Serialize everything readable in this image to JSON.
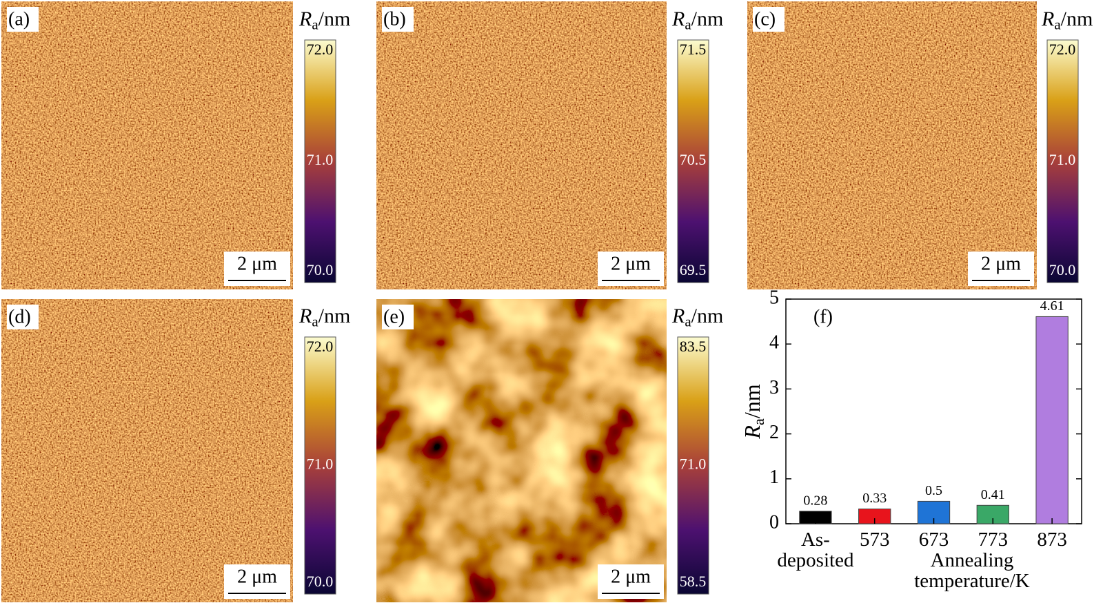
{
  "panels": [
    {
      "label": "(a)",
      "quantity": {
        "symbol": "R",
        "subscript": "a",
        "unit": "/nm"
      },
      "colorbar_ticks": [
        {
          "value": 72,
          "label": "72.0"
        },
        {
          "value": 71,
          "label": "71.0"
        },
        {
          "value": 70,
          "label": "70.0"
        }
      ],
      "scale_bar": "2 μm"
    },
    {
      "label": "(b)",
      "quantity": {
        "symbol": "R",
        "subscript": "a",
        "unit": "/nm"
      },
      "colorbar_ticks": [
        71.5,
        70.5,
        69.5
      ],
      "scale_bar": "2 μm"
    },
    {
      "label": "(c)",
      "quantity": {
        "symbol": "R",
        "subscript": "a",
        "unit": "/nm"
      },
      "colorbar_ticks": [
        {
          "value": 72,
          "label": "72.0"
        },
        {
          "value": 71,
          "label": "71.0"
        },
        {
          "value": 70,
          "label": "70.0"
        }
      ],
      "scale_bar": "2 μm"
    },
    {
      "label": "(d)",
      "quantity": {
        "symbol": "R",
        "subscript": "a",
        "unit": "/nm"
      },
      "colorbar_ticks": [
        {
          "value": 72,
          "label": "72.0"
        },
        {
          "value": 71,
          "label": "71.0"
        },
        {
          "value": 70,
          "label": "70.0"
        }
      ],
      "scale_bar": "2 μm"
    },
    {
      "label": "(e)",
      "quantity": {
        "symbol": "R",
        "subscript": "a",
        "unit": "/nm"
      },
      "colorbar_ticks": [
        83.5,
        {
          "value": 71,
          "label": "71.0"
        },
        58.5
      ],
      "scale_bar": "2 μm"
    }
  ],
  "chart_data": {
    "type": "bar",
    "panel_label": "(f)",
    "categories": [
      "As-\ndeposited",
      "573",
      "673",
      "773",
      "873"
    ],
    "values": [
      0.28,
      0.33,
      0.5,
      0.41,
      4.61
    ],
    "colors": [
      "#000000",
      "#e8141c",
      "#1f74d6",
      "#3aa867",
      "#b07ddf"
    ],
    "ylim": [
      0,
      5
    ],
    "yticks": [
      0,
      1,
      2,
      3,
      4,
      5
    ],
    "y_label": {
      "symbol": "R",
      "subscript": "a",
      "unit": "/nm"
    },
    "x_label": "Annealing\ntemperature/K"
  }
}
